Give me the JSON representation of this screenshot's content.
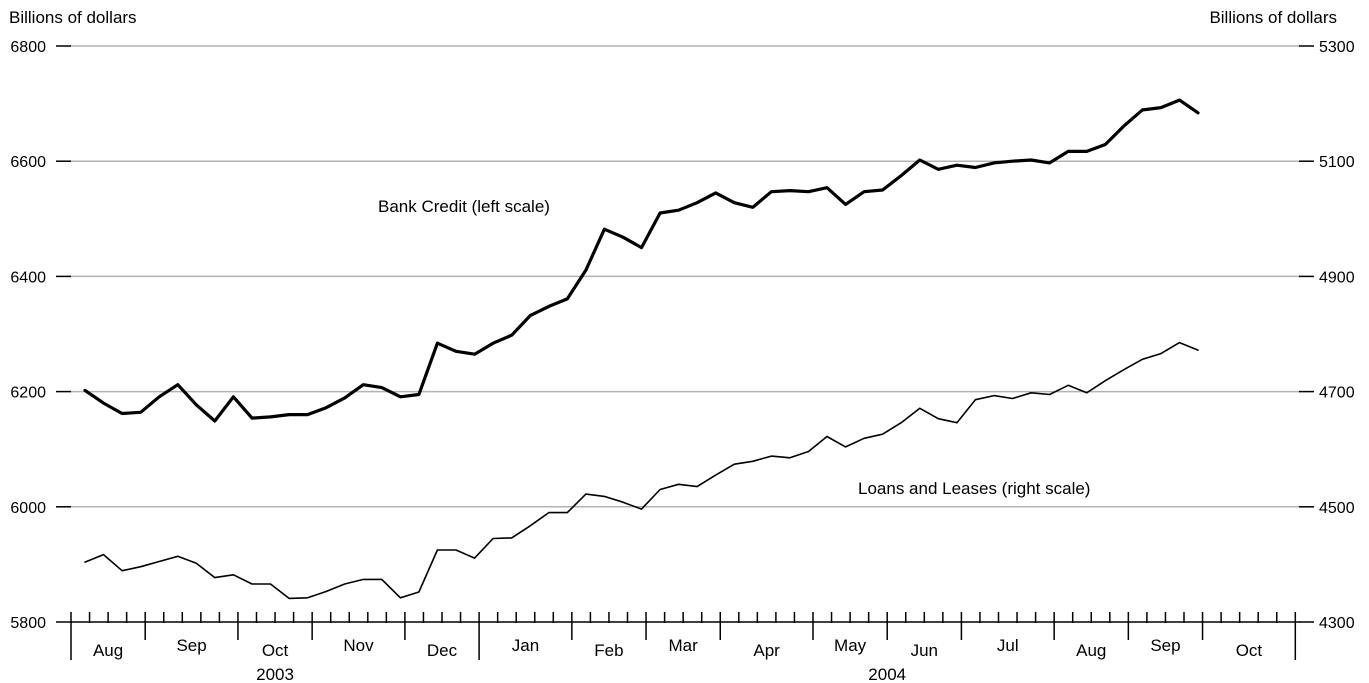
{
  "chart_data": {
    "type": "line",
    "y_left_label": "Billions of dollars",
    "y_right_label": "Billions of dollars",
    "y_left_ticks": [
      "6800",
      "6600",
      "6400",
      "6200",
      "6000",
      "5800"
    ],
    "y_right_ticks": [
      "5300",
      "5100",
      "4900",
      "4700",
      "4500",
      "4300"
    ],
    "ylim_left": [
      5800,
      6800
    ],
    "ylim_right": [
      4300,
      5300
    ],
    "grid": true,
    "x_weeks_total": 66,
    "months": [
      {
        "label": "Aug",
        "weeks": 4
      },
      {
        "label": "Sep",
        "weeks": 5
      },
      {
        "label": "Oct",
        "weeks": 4
      },
      {
        "label": "Nov",
        "weeks": 5
      },
      {
        "label": "Dec",
        "weeks": 4
      },
      {
        "label": "Jan",
        "weeks": 5
      },
      {
        "label": "Feb",
        "weeks": 4
      },
      {
        "label": "Mar",
        "weeks": 4
      },
      {
        "label": "Apr",
        "weeks": 5
      },
      {
        "label": "May",
        "weeks": 4
      },
      {
        "label": "Jun",
        "weeks": 4
      },
      {
        "label": "Jul",
        "weeks": 5
      },
      {
        "label": "Aug",
        "weeks": 4
      },
      {
        "label": "Sep",
        "weeks": 4
      },
      {
        "label": "Oct",
        "weeks": 5
      }
    ],
    "years": [
      {
        "label": "2003",
        "first_month": 0,
        "last_month": 4
      },
      {
        "label": "2004",
        "first_month": 5,
        "last_month": 14
      }
    ],
    "series": [
      {
        "name": "Bank Credit (left scale)",
        "axis": "left",
        "stroke": "#000000",
        "width": 3.2,
        "values": [
          6202,
          6180,
          6162,
          6164,
          6191,
          6212,
          6177,
          6149,
          6191,
          6154,
          6156,
          6160,
          6160,
          6172,
          6189,
          6212,
          6207,
          6191,
          6195,
          6284,
          6270,
          6265,
          6284,
          6298,
          6332,
          6348,
          6361,
          6411,
          6482,
          6468,
          6450,
          6510,
          6515,
          6528,
          6545,
          6528,
          6520,
          6547,
          6549,
          6547,
          6554,
          6525,
          6547,
          6550,
          6575,
          6602,
          6586,
          6593,
          6589,
          6597,
          6600,
          6602,
          6597,
          6617,
          6617,
          6629,
          6661,
          6689,
          6693,
          6706,
          6684
        ]
      },
      {
        "name": "Loans and Leases (right scale)",
        "axis": "right",
        "stroke": "#000000",
        "width": 1.6,
        "values": [
          4404,
          4417,
          4389,
          4396,
          4405,
          4414,
          4402,
          4377,
          4382,
          4366,
          4366,
          4341,
          4342,
          4353,
          4366,
          4374,
          4374,
          4342,
          4352,
          4425,
          4425,
          4411,
          4445,
          4446,
          4467,
          4490,
          4490,
          4522,
          4518,
          4508,
          4496,
          4530,
          4539,
          4535,
          4555,
          4574,
          4579,
          4588,
          4585,
          4596,
          4622,
          4604,
          4619,
          4626,
          4646,
          4671,
          4653,
          4646,
          4686,
          4693,
          4688,
          4698,
          4695,
          4711,
          4698,
          4719,
          4738,
          4756,
          4766,
          4785,
          4772
        ]
      }
    ],
    "annotations": [
      {
        "text": "Bank Credit (left scale)"
      },
      {
        "text": "Loans and Leases (right scale)"
      }
    ]
  }
}
